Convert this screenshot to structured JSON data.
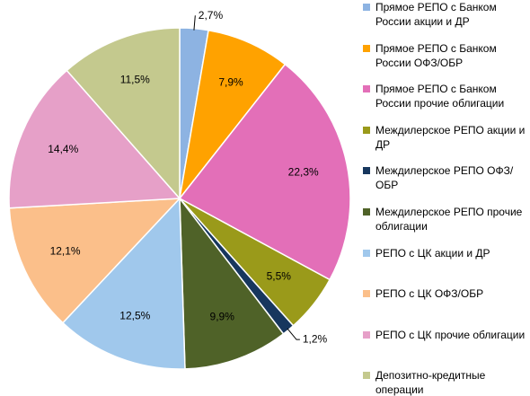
{
  "chart_data": {
    "type": "pie",
    "categories": [
      "Прямое РЕПО с Банком России акции и ДР",
      "Прямое РЕПО с Банком России ОФЗ/ОБР",
      "Прямое РЕПО с Банком России прочие облигации",
      "Междилерское РЕПО акции и ДР",
      "Междилерское РЕПО ОФЗ/ОБР",
      "Междилерское РЕПО прочие облигации",
      "РЕПО с ЦК акции и ДР",
      "РЕПО с ЦК ОФЗ/ОБР",
      "РЕПО с ЦК прочие облигации",
      "Депозитно-кредитные операции"
    ],
    "values": [
      2.7,
      7.9,
      22.3,
      5.5,
      1.2,
      9.9,
      12.5,
      12.1,
      14.4,
      11.5
    ],
    "value_labels": [
      "2,7%",
      "7,9%",
      "22,3%",
      "5,5%",
      "1,2%",
      "9,9%",
      "12,5%",
      "12,1%",
      "14,4%",
      "11,5%"
    ],
    "colors": [
      "#8db3e2",
      "#ffa200",
      "#e36fb8",
      "#9a9a1a",
      "#17375e",
      "#4f6228",
      "#a0c8ec",
      "#fbbf8a",
      "#e6a0c8",
      "#c4c98e"
    ],
    "legend": "right"
  }
}
